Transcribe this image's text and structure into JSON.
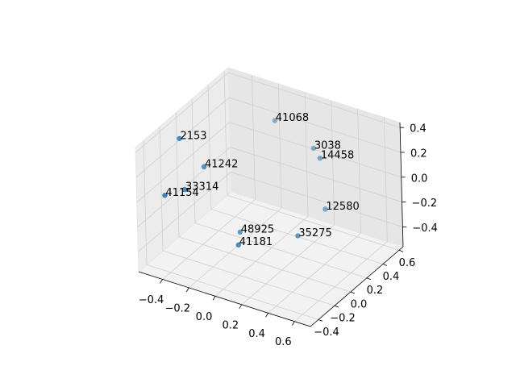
{
  "chart_data": {
    "type": "scatter3d",
    "labels": [
      "2153",
      "41242",
      "33314",
      "41154",
      "41068",
      "3038",
      "14458",
      "12580",
      "48925",
      "41181",
      "35275"
    ],
    "x": [
      -0.46,
      -0.35,
      -0.43,
      -0.51,
      -0.09,
      0.2,
      0.32,
      0.35,
      -0.16,
      -0.03,
      0.28
    ],
    "y": [
      -0.155,
      -0.04,
      -0.155,
      -0.27,
      0.42,
      0.42,
      0.305,
      0.305,
      0.075,
      -0.155,
      0.075
    ],
    "z": [
      0.36,
      0.106,
      -0.04,
      -0.05,
      0.31,
      0.185,
      0.21,
      -0.19,
      -0.42,
      -0.35,
      -0.3
    ],
    "color": "#1f77b4",
    "xlim": [
      -0.58,
      0.72
    ],
    "ylim": [
      -0.5,
      0.65
    ],
    "zlim": [
      -0.56,
      0.44
    ],
    "xticks": [
      {
        "value": -0.4,
        "label": "−0.4"
      },
      {
        "value": -0.2,
        "label": "−0.2"
      },
      {
        "value": 0,
        "label": "0.0"
      },
      0.2,
      0.4,
      0.6
    ],
    "yticks": [
      {
        "value": -0.4,
        "label": "−0.4"
      },
      {
        "value": -0.2,
        "label": "−0.2"
      },
      {
        "value": 0,
        "label": "0.0"
      },
      0.2,
      0.4,
      0.6
    ],
    "zticks": [
      {
        "value": -0.4,
        "label": "−0.4"
      },
      {
        "value": -0.2,
        "label": "−0.2"
      },
      {
        "value": 0,
        "label": "0.0"
      },
      0.2,
      0.4
    ],
    "grid": true
  }
}
